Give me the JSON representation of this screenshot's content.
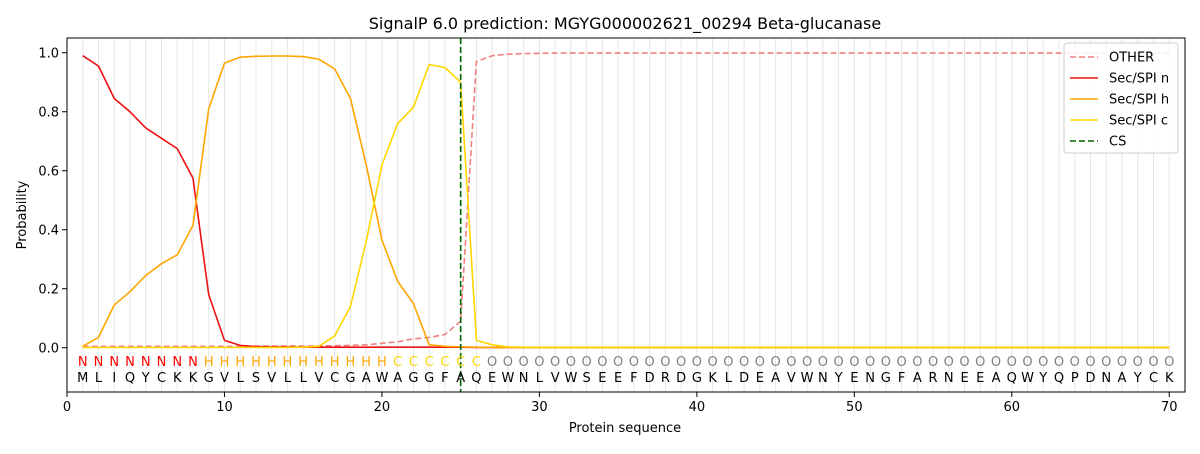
{
  "chart_data": {
    "type": "line",
    "title": "SignalP 6.0 prediction: MGYG000002621_00294 Beta-glucanase",
    "xlabel": "Protein sequence",
    "ylabel": "Probability",
    "xlim": [
      0,
      71
    ],
    "ylim": [
      -0.15,
      1.05
    ],
    "xticks": [
      0,
      10,
      20,
      30,
      40,
      50,
      60,
      70
    ],
    "yticks": [
      0.0,
      0.2,
      0.4,
      0.6,
      0.8,
      1.0
    ],
    "grid": "vertical lines at each residue",
    "legend_position": "top-right",
    "sequence": "MLIQYCKKGVLSVLLVCGAWAGGFAQEWNLVWSEEFDRDGKLDEAVWNYENGFARNEEAQWYQPDNAYCK",
    "labels": "NNNNNNNNHHHHHHHHHHHHCCCCCCOOOOOOOOOOOOOOOOOOOOOOOOOOOOOOOOOOOOOOOOOOOOO",
    "label_colors": {
      "N": "#ff0000",
      "H": "#ffa500",
      "C": "#ffd700",
      "O": "#808080"
    },
    "cleavage_site": 25,
    "series": [
      {
        "name": "OTHER",
        "color": "#f08080",
        "dash": true,
        "values": [
          0.005,
          0.005,
          0.005,
          0.005,
          0.005,
          0.005,
          0.005,
          0.005,
          0.005,
          0.005,
          0.005,
          0.006,
          0.006,
          0.006,
          0.006,
          0.006,
          0.007,
          0.008,
          0.01,
          0.015,
          0.02,
          0.03,
          0.035,
          0.045,
          0.09,
          0.97,
          0.99,
          0.995,
          0.997,
          0.998,
          0.999,
          0.999,
          0.999,
          0.999,
          0.999,
          0.999,
          0.999,
          0.999,
          0.999,
          0.999,
          0.999,
          0.999,
          0.999,
          0.999,
          0.999,
          0.999,
          0.999,
          0.999,
          0.999,
          0.999,
          0.999,
          0.999,
          0.999,
          0.999,
          0.999,
          0.999,
          0.999,
          0.999,
          0.999,
          0.999,
          0.999,
          0.999,
          0.999,
          0.999,
          0.999,
          0.999,
          0.999,
          0.999,
          0.999,
          0.999
        ]
      },
      {
        "name": "Sec/SPI n",
        "color": "#ee1111",
        "dash": false,
        "values": [
          0.99,
          0.955,
          0.845,
          0.8,
          0.745,
          0.71,
          0.675,
          0.575,
          0.18,
          0.025,
          0.008,
          0.004,
          0.003,
          0.003,
          0.002,
          0.002,
          0.002,
          0.002,
          0.002,
          0.002,
          0.002,
          0.002,
          0.002,
          0.002,
          0.002,
          0.001,
          0.001,
          0.001,
          0.001,
          0.001,
          0.001,
          0.001,
          0.001,
          0.001,
          0.001,
          0.001,
          0.001,
          0.001,
          0.001,
          0.001,
          0.001,
          0.001,
          0.001,
          0.001,
          0.001,
          0.001,
          0.001,
          0.001,
          0.001,
          0.001,
          0.001,
          0.001,
          0.001,
          0.001,
          0.001,
          0.001,
          0.001,
          0.001,
          0.001,
          0.001,
          0.001,
          0.001,
          0.001,
          0.001,
          0.001,
          0.001,
          0.001,
          0.001,
          0.001,
          0.001
        ]
      },
      {
        "name": "Sec/SPI h",
        "color": "#ffa500",
        "dash": false,
        "values": [
          0.005,
          0.035,
          0.145,
          0.19,
          0.245,
          0.285,
          0.315,
          0.415,
          0.81,
          0.965,
          0.985,
          0.988,
          0.989,
          0.989,
          0.987,
          0.978,
          0.945,
          0.845,
          0.62,
          0.365,
          0.225,
          0.15,
          0.01,
          0.005,
          0.003,
          0.002,
          0.001,
          0.001,
          0.001,
          0.001,
          0.001,
          0.001,
          0.001,
          0.001,
          0.001,
          0.001,
          0.001,
          0.001,
          0.001,
          0.001,
          0.001,
          0.001,
          0.001,
          0.001,
          0.001,
          0.001,
          0.001,
          0.001,
          0.001,
          0.001,
          0.001,
          0.001,
          0.001,
          0.001,
          0.001,
          0.001,
          0.001,
          0.001,
          0.001,
          0.001,
          0.001,
          0.001,
          0.001,
          0.001,
          0.001,
          0.001,
          0.001,
          0.001,
          0.001,
          0.001
        ]
      },
      {
        "name": "Sec/SPI c",
        "color": "#ffd700",
        "dash": false,
        "values": [
          0.001,
          0.001,
          0.001,
          0.001,
          0.001,
          0.001,
          0.001,
          0.001,
          0.001,
          0.001,
          0.001,
          0.001,
          0.001,
          0.001,
          0.002,
          0.005,
          0.04,
          0.14,
          0.36,
          0.62,
          0.76,
          0.815,
          0.96,
          0.95,
          0.9,
          0.025,
          0.01,
          0.003,
          0.002,
          0.001,
          0.001,
          0.001,
          0.001,
          0.001,
          0.001,
          0.001,
          0.001,
          0.001,
          0.001,
          0.001,
          0.001,
          0.001,
          0.001,
          0.001,
          0.001,
          0.001,
          0.001,
          0.001,
          0.001,
          0.001,
          0.001,
          0.001,
          0.001,
          0.001,
          0.001,
          0.001,
          0.001,
          0.001,
          0.001,
          0.001,
          0.001,
          0.001,
          0.001,
          0.001,
          0.001,
          0.001,
          0.001,
          0.001,
          0.001,
          0.001
        ]
      }
    ],
    "cs_legend": {
      "name": "CS",
      "color": "#006400",
      "dash": true
    }
  }
}
